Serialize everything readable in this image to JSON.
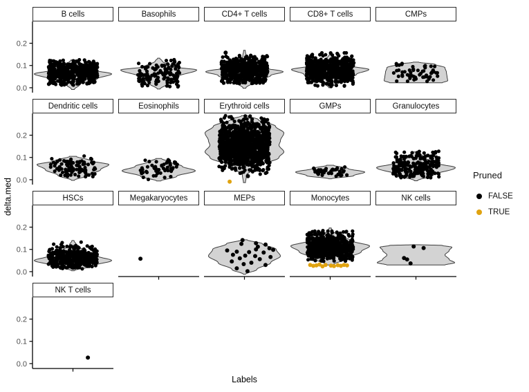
{
  "axes": {
    "x_label": "Labels",
    "y_label": "delta.med",
    "y_ticks": [
      "0.0",
      "0.1",
      "0.2"
    ],
    "y_tick_values": [
      0.0,
      0.1,
      0.2
    ]
  },
  "legend": {
    "title": "Pruned",
    "entries": [
      {
        "label": "FALSE",
        "color": "#000000"
      },
      {
        "label": "TRUE",
        "color": "#E0A310"
      }
    ]
  },
  "colors": {
    "point_false": "#000000",
    "point_true": "#E0A310",
    "violin_fill": "#D3D3D3",
    "violin_stroke": "#3C3C3C",
    "axis_line": "#000000",
    "tick_text": "#4D4D4D"
  },
  "chart_data": {
    "type": "violin-jitter",
    "x_categories_note": "one unlabeled x position per facet",
    "value_range": [
      -0.022,
      0.298
    ],
    "grid": false,
    "legend_position": "right",
    "facets": [
      {
        "name": "B cells",
        "violin": [
          [
            -0.008,
            2
          ],
          [
            0.015,
            10
          ],
          [
            0.04,
            35
          ],
          [
            0.062,
            56
          ],
          [
            0.08,
            30
          ],
          [
            0.1,
            12
          ],
          [
            0.125,
            3
          ]
        ],
        "cloud": {
          "n": 480,
          "mean": 0.068,
          "sd": 0.03,
          "min": 0.012,
          "max": 0.128,
          "xspread": 0.64
        },
        "points": [],
        "pruned": []
      },
      {
        "name": "Basophils",
        "violin": [
          [
            -0.006,
            2
          ],
          [
            0.02,
            14
          ],
          [
            0.05,
            28
          ],
          [
            0.08,
            55
          ],
          [
            0.095,
            20
          ],
          [
            0.12,
            5
          ],
          [
            0.133,
            1.5
          ]
        ],
        "cloud": {
          "n": 130,
          "mean": 0.06,
          "sd": 0.032,
          "min": 0.0,
          "max": 0.13,
          "xspread": 0.55
        },
        "points": [],
        "pruned": []
      },
      {
        "name": "CD4+ T cells",
        "violin": [
          [
            -0.002,
            2
          ],
          [
            0.03,
            16
          ],
          [
            0.055,
            38
          ],
          [
            0.072,
            56
          ],
          [
            0.09,
            28
          ],
          [
            0.115,
            8
          ],
          [
            0.14,
            2.5
          ],
          [
            0.168,
            1.2
          ]
        ],
        "cloud": {
          "n": 600,
          "mean": 0.08,
          "sd": 0.03,
          "min": 0.018,
          "max": 0.146,
          "xspread": 0.6
        },
        "points": [
          [
            -0.49,
            0.158
          ]
        ],
        "pruned": []
      },
      {
        "name": "CD8+ T cells",
        "violin": [
          [
            0.0,
            2
          ],
          [
            0.035,
            18
          ],
          [
            0.06,
            38
          ],
          [
            0.082,
            56
          ],
          [
            0.1,
            26
          ],
          [
            0.125,
            7
          ],
          [
            0.148,
            1.5
          ]
        ],
        "cloud": {
          "n": 600,
          "mean": 0.082,
          "sd": 0.032,
          "min": 0.005,
          "max": 0.158,
          "xspread": 0.62
        },
        "points": [],
        "pruned": []
      },
      {
        "name": "CMPs",
        "violin": [
          [
            0.022,
            38
          ],
          [
            0.032,
            46
          ],
          [
            0.05,
            45
          ],
          [
            0.07,
            44
          ],
          [
            0.09,
            42
          ],
          [
            0.105,
            28
          ],
          [
            0.115,
            4
          ]
        ],
        "cloud": {
          "n": 55,
          "mean": 0.065,
          "sd": 0.022,
          "min": 0.028,
          "max": 0.113,
          "xspread": 0.58
        },
        "points": [],
        "pruned": []
      },
      {
        "name": "Dendritic cells",
        "violin": [
          [
            -0.003,
            2
          ],
          [
            0.02,
            22
          ],
          [
            0.045,
            40
          ],
          [
            0.068,
            52
          ],
          [
            0.085,
            26
          ],
          [
            0.105,
            5
          ]
        ],
        "cloud": {
          "n": 90,
          "mean": 0.055,
          "sd": 0.024,
          "min": 0.008,
          "max": 0.108,
          "xspread": 0.58
        },
        "points": [],
        "pruned": []
      },
      {
        "name": "Eosinophils",
        "violin": [
          [
            -0.006,
            3
          ],
          [
            0.015,
            26
          ],
          [
            0.04,
            53
          ],
          [
            0.06,
            34
          ],
          [
            0.08,
            16
          ],
          [
            0.095,
            4
          ]
        ],
        "cloud": {
          "n": 55,
          "mean": 0.048,
          "sd": 0.022,
          "min": 0.0,
          "max": 0.095,
          "xspread": 0.52
        },
        "points": [],
        "pruned": []
      },
      {
        "name": "Erythroid cells",
        "violin": [
          [
            -0.013,
            1.5
          ],
          [
            0.02,
            3
          ],
          [
            0.06,
            20
          ],
          [
            0.1,
            50
          ],
          [
            0.125,
            57
          ],
          [
            0.155,
            50
          ],
          [
            0.175,
            52
          ],
          [
            0.21,
            57
          ],
          [
            0.24,
            45
          ],
          [
            0.27,
            20
          ],
          [
            0.288,
            4
          ]
        ],
        "cloud": {
          "n": 1100,
          "mean": 0.155,
          "sd": 0.055,
          "min": 0.024,
          "max": 0.288,
          "xspread": 0.66
        },
        "points": [
          [
            0.09,
            0.016
          ]
        ],
        "pruned": [
          [
            -0.385,
            -0.009
          ]
        ]
      },
      {
        "name": "GMPs",
        "violin": [
          [
            0.004,
            2
          ],
          [
            0.018,
            34
          ],
          [
            0.034,
            50
          ],
          [
            0.05,
            26
          ],
          [
            0.065,
            5
          ]
        ],
        "cloud": {
          "n": 42,
          "mean": 0.034,
          "sd": 0.013,
          "min": 0.01,
          "max": 0.058,
          "xspread": 0.45
        },
        "points": [],
        "pruned": []
      },
      {
        "name": "Granulocytes",
        "violin": [
          [
            -0.005,
            2
          ],
          [
            0.02,
            25
          ],
          [
            0.054,
            57
          ],
          [
            0.075,
            30
          ],
          [
            0.1,
            12
          ],
          [
            0.125,
            3
          ]
        ],
        "cloud": {
          "n": 220,
          "mean": 0.06,
          "sd": 0.03,
          "min": 0.003,
          "max": 0.128,
          "xspread": 0.6
        },
        "points": [],
        "pruned": []
      },
      {
        "name": "HSCs",
        "violin": [
          [
            0.004,
            2
          ],
          [
            0.028,
            32
          ],
          [
            0.05,
            56
          ],
          [
            0.07,
            36
          ],
          [
            0.095,
            15
          ],
          [
            0.12,
            5
          ],
          [
            0.14,
            1.5
          ]
        ],
        "cloud": {
          "n": 400,
          "mean": 0.062,
          "sd": 0.027,
          "min": 0.012,
          "max": 0.135,
          "xspread": 0.64
        },
        "points": [],
        "pruned": []
      },
      {
        "name": "Megakaryocytes",
        "violin": null,
        "cloud": null,
        "points": [
          [
            -0.475,
            0.058
          ]
        ],
        "pruned": []
      },
      {
        "name": "MEPs",
        "violin": [
          [
            -0.012,
            1.5
          ],
          [
            0.01,
            18
          ],
          [
            0.04,
            38
          ],
          [
            0.07,
            52
          ],
          [
            0.1,
            46
          ],
          [
            0.125,
            26
          ],
          [
            0.143,
            4
          ]
        ],
        "cloud": null,
        "points": [
          [
            -0.05,
            0.142
          ],
          [
            0.3,
            0.128
          ],
          [
            -0.08,
            0.125
          ],
          [
            0.55,
            0.122
          ],
          [
            0.35,
            0.112
          ],
          [
            0.65,
            0.105
          ],
          [
            0.3,
            0.1
          ],
          [
            0.75,
            0.098
          ],
          [
            -0.45,
            0.095
          ],
          [
            -0.2,
            0.09
          ],
          [
            0.12,
            0.088
          ],
          [
            0.5,
            0.086
          ],
          [
            -0.3,
            0.076
          ],
          [
            0.02,
            0.072
          ],
          [
            0.28,
            0.07
          ],
          [
            0.68,
            0.066
          ],
          [
            -0.12,
            0.06
          ],
          [
            0.4,
            0.056
          ],
          [
            -0.33,
            0.046
          ],
          [
            0.18,
            0.04
          ],
          [
            -0.02,
            0.034
          ],
          [
            0.55,
            0.03
          ],
          [
            -0.2,
            0.015
          ],
          [
            0.08,
            0.002
          ]
        ],
        "pruned": []
      },
      {
        "name": "Monocytes",
        "violin": [
          [
            0.03,
            4
          ],
          [
            0.06,
            25
          ],
          [
            0.09,
            45
          ],
          [
            0.115,
            57
          ],
          [
            0.14,
            30
          ],
          [
            0.165,
            10
          ],
          [
            0.182,
            4
          ],
          [
            0.196,
            1.5
          ]
        ],
        "cloud": {
          "n": 580,
          "mean": 0.11,
          "sd": 0.032,
          "min": 0.045,
          "max": 0.185,
          "xspread": 0.6
        },
        "points": [],
        "pruned": [
          [
            -0.52,
            0.03
          ],
          [
            -0.44,
            0.026
          ],
          [
            -0.36,
            0.028
          ],
          [
            -0.28,
            0.032
          ],
          [
            -0.12,
            0.03
          ],
          [
            -0.2,
            0.024
          ],
          [
            0.02,
            0.027
          ],
          [
            0.1,
            0.025
          ],
          [
            0.2,
            0.029
          ],
          [
            0.28,
            0.026
          ],
          [
            0.36,
            0.03
          ],
          [
            0.44,
            0.028
          ]
        ]
      },
      {
        "name": "NK cells",
        "violin": [
          [
            0.03,
            42
          ],
          [
            0.04,
            56
          ],
          [
            0.055,
            48
          ],
          [
            0.075,
            42
          ],
          [
            0.095,
            48
          ],
          [
            0.11,
            52
          ],
          [
            0.118,
            38
          ],
          [
            0.121,
            6
          ]
        ],
        "cloud": null,
        "points": [
          [
            -0.06,
            0.113
          ],
          [
            0.2,
            0.106
          ],
          [
            -0.31,
            0.061
          ],
          [
            -0.23,
            0.055
          ],
          [
            -0.14,
            0.037
          ]
        ],
        "pruned": []
      },
      {
        "name": "NK T cells",
        "violin": null,
        "cloud": null,
        "points": [
          [
            0.39,
            0.027
          ]
        ],
        "pruned": []
      }
    ]
  }
}
